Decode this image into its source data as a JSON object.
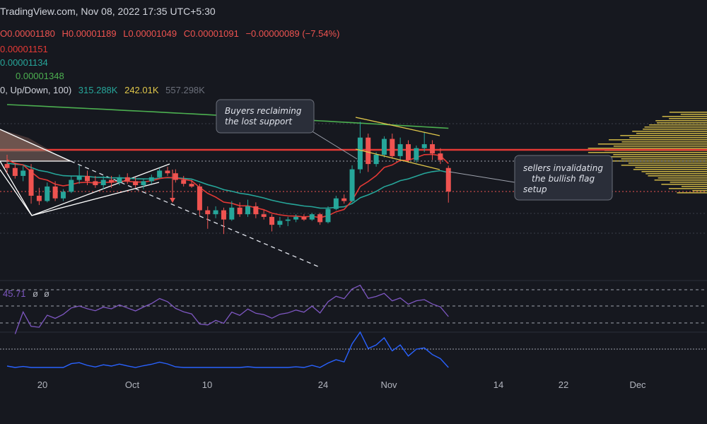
{
  "header": {
    "source": "TradingView.com, Nov 08, 2022 17:35 UTC+5:30"
  },
  "ohlc": {
    "o": "O0.00001180",
    "h": "H0.00001189",
    "l": "L0.00001049",
    "c": "C0.00001091",
    "change": "−0.00000089 (−7.54%)"
  },
  "indicators": {
    "ema_red": "0.00001151",
    "ema_teal": "0.00001134",
    "ema_green": "0.00001348",
    "volume_label": "0, Up/Down, 100)",
    "volume_up": "315.288K",
    "volume_down": "242.01K",
    "volume_total": "557.298K"
  },
  "rsi": {
    "value": "45.71",
    "extra1": "ø",
    "extra2": "ø"
  },
  "annotations": {
    "buyers": [
      "Buyers reclaiming",
      "the lost support"
    ],
    "sellers": [
      "sellers invalidating",
      "the bullish flag",
      "setup"
    ]
  },
  "colors": {
    "bg": "#16181f",
    "up": "#26a69a",
    "down": "#ef5350",
    "ema_red": "#e53935",
    "ema_teal": "#26a69a",
    "ema_green": "#4caf50",
    "rsi": "#7e57c2",
    "blue": "#2962ff",
    "yellow": "#e0c74a"
  },
  "chart_data": {
    "type": "candlestick",
    "x_ticks": [
      "20",
      "Oct",
      "10",
      "24",
      "Nov",
      "14",
      "22",
      "Dec"
    ],
    "candles": [
      {
        "o": 11.95,
        "h": 12.3,
        "l": 11.6,
        "c": 11.8
      },
      {
        "o": 11.8,
        "h": 12.0,
        "l": 11.4,
        "c": 11.5
      },
      {
        "o": 11.5,
        "h": 11.9,
        "l": 11.3,
        "c": 11.7
      },
      {
        "o": 11.75,
        "h": 11.95,
        "l": 10.45,
        "c": 10.75
      },
      {
        "o": 10.75,
        "h": 11.05,
        "l": 10.4,
        "c": 10.55
      },
      {
        "o": 10.55,
        "h": 11.25,
        "l": 10.5,
        "c": 11.1
      },
      {
        "o": 11.1,
        "h": 11.3,
        "l": 10.55,
        "c": 10.65
      },
      {
        "o": 10.65,
        "h": 11.0,
        "l": 10.55,
        "c": 10.9
      },
      {
        "o": 10.9,
        "h": 11.5,
        "l": 10.85,
        "c": 11.35
      },
      {
        "o": 11.35,
        "h": 11.9,
        "l": 11.2,
        "c": 11.5
      },
      {
        "o": 11.5,
        "h": 11.7,
        "l": 11.15,
        "c": 11.3
      },
      {
        "o": 11.3,
        "h": 11.5,
        "l": 11.05,
        "c": 11.15
      },
      {
        "o": 11.15,
        "h": 11.5,
        "l": 11.0,
        "c": 11.35
      },
      {
        "o": 11.35,
        "h": 11.5,
        "l": 11.05,
        "c": 11.25
      },
      {
        "o": 11.25,
        "h": 11.55,
        "l": 11.15,
        "c": 11.45
      },
      {
        "o": 11.45,
        "h": 11.6,
        "l": 11.2,
        "c": 11.3
      },
      {
        "o": 11.3,
        "h": 11.45,
        "l": 11.05,
        "c": 11.15
      },
      {
        "o": 11.15,
        "h": 11.4,
        "l": 11.0,
        "c": 11.3
      },
      {
        "o": 11.3,
        "h": 11.55,
        "l": 11.2,
        "c": 11.45
      },
      {
        "o": 11.45,
        "h": 11.8,
        "l": 11.4,
        "c": 11.7
      },
      {
        "o": 11.7,
        "h": 11.85,
        "l": 11.5,
        "c": 11.6
      },
      {
        "o": 11.6,
        "h": 11.75,
        "l": 11.25,
        "c": 11.35
      },
      {
        "o": 11.35,
        "h": 11.5,
        "l": 11.1,
        "c": 11.2
      },
      {
        "o": 11.2,
        "h": 11.35,
        "l": 11.05,
        "c": 11.1
      },
      {
        "o": 11.1,
        "h": 11.2,
        "l": 10.0,
        "c": 10.2
      },
      {
        "o": 10.2,
        "h": 10.35,
        "l": 9.5,
        "c": 10.05
      },
      {
        "o": 10.05,
        "h": 10.35,
        "l": 9.9,
        "c": 10.2
      },
      {
        "o": 10.2,
        "h": 10.3,
        "l": 9.3,
        "c": 9.85
      },
      {
        "o": 9.85,
        "h": 10.55,
        "l": 9.8,
        "c": 10.3
      },
      {
        "o": 10.3,
        "h": 10.5,
        "l": 9.95,
        "c": 10.05
      },
      {
        "o": 10.05,
        "h": 10.6,
        "l": 9.95,
        "c": 10.35
      },
      {
        "o": 10.35,
        "h": 10.5,
        "l": 9.9,
        "c": 10.05
      },
      {
        "o": 10.05,
        "h": 10.2,
        "l": 9.85,
        "c": 9.95
      },
      {
        "o": 9.95,
        "h": 10.05,
        "l": 9.4,
        "c": 9.65
      },
      {
        "o": 9.65,
        "h": 9.95,
        "l": 9.55,
        "c": 9.8
      },
      {
        "o": 9.8,
        "h": 9.95,
        "l": 9.6,
        "c": 9.85
      },
      {
        "o": 9.85,
        "h": 10.05,
        "l": 9.75,
        "c": 9.95
      },
      {
        "o": 9.95,
        "h": 10.05,
        "l": 9.8,
        "c": 9.85
      },
      {
        "o": 9.85,
        "h": 10.1,
        "l": 9.8,
        "c": 10.05
      },
      {
        "o": 10.05,
        "h": 10.1,
        "l": 9.65,
        "c": 9.75
      },
      {
        "o": 9.75,
        "h": 10.35,
        "l": 9.7,
        "c": 10.25
      },
      {
        "o": 10.25,
        "h": 10.75,
        "l": 10.2,
        "c": 10.65
      },
      {
        "o": 10.65,
        "h": 10.8,
        "l": 10.45,
        "c": 10.55
      },
      {
        "o": 10.55,
        "h": 11.9,
        "l": 10.5,
        "c": 11.75
      },
      {
        "o": 11.75,
        "h": 13.55,
        "l": 11.6,
        "c": 12.95
      },
      {
        "o": 12.95,
        "h": 13.1,
        "l": 11.65,
        "c": 11.95
      },
      {
        "o": 11.95,
        "h": 12.4,
        "l": 11.85,
        "c": 12.3
      },
      {
        "o": 12.3,
        "h": 13.0,
        "l": 12.2,
        "c": 12.9
      },
      {
        "o": 12.9,
        "h": 13.1,
        "l": 12.15,
        "c": 12.25
      },
      {
        "o": 12.25,
        "h": 12.95,
        "l": 12.1,
        "c": 12.7
      },
      {
        "o": 12.7,
        "h": 12.85,
        "l": 12.0,
        "c": 12.1
      },
      {
        "o": 12.1,
        "h": 12.65,
        "l": 12.0,
        "c": 12.55
      },
      {
        "o": 12.55,
        "h": 13.15,
        "l": 12.4,
        "c": 12.7
      },
      {
        "o": 12.7,
        "h": 12.85,
        "l": 12.1,
        "c": 12.35
      },
      {
        "o": 12.35,
        "h": 12.55,
        "l": 11.95,
        "c": 12.1
      },
      {
        "o": 11.8,
        "h": 11.89,
        "l": 10.49,
        "c": 10.91
      }
    ],
    "ema_red_last": 11.51,
    "ema_teal_last": 11.34,
    "ema_green_last": 13.48
  }
}
